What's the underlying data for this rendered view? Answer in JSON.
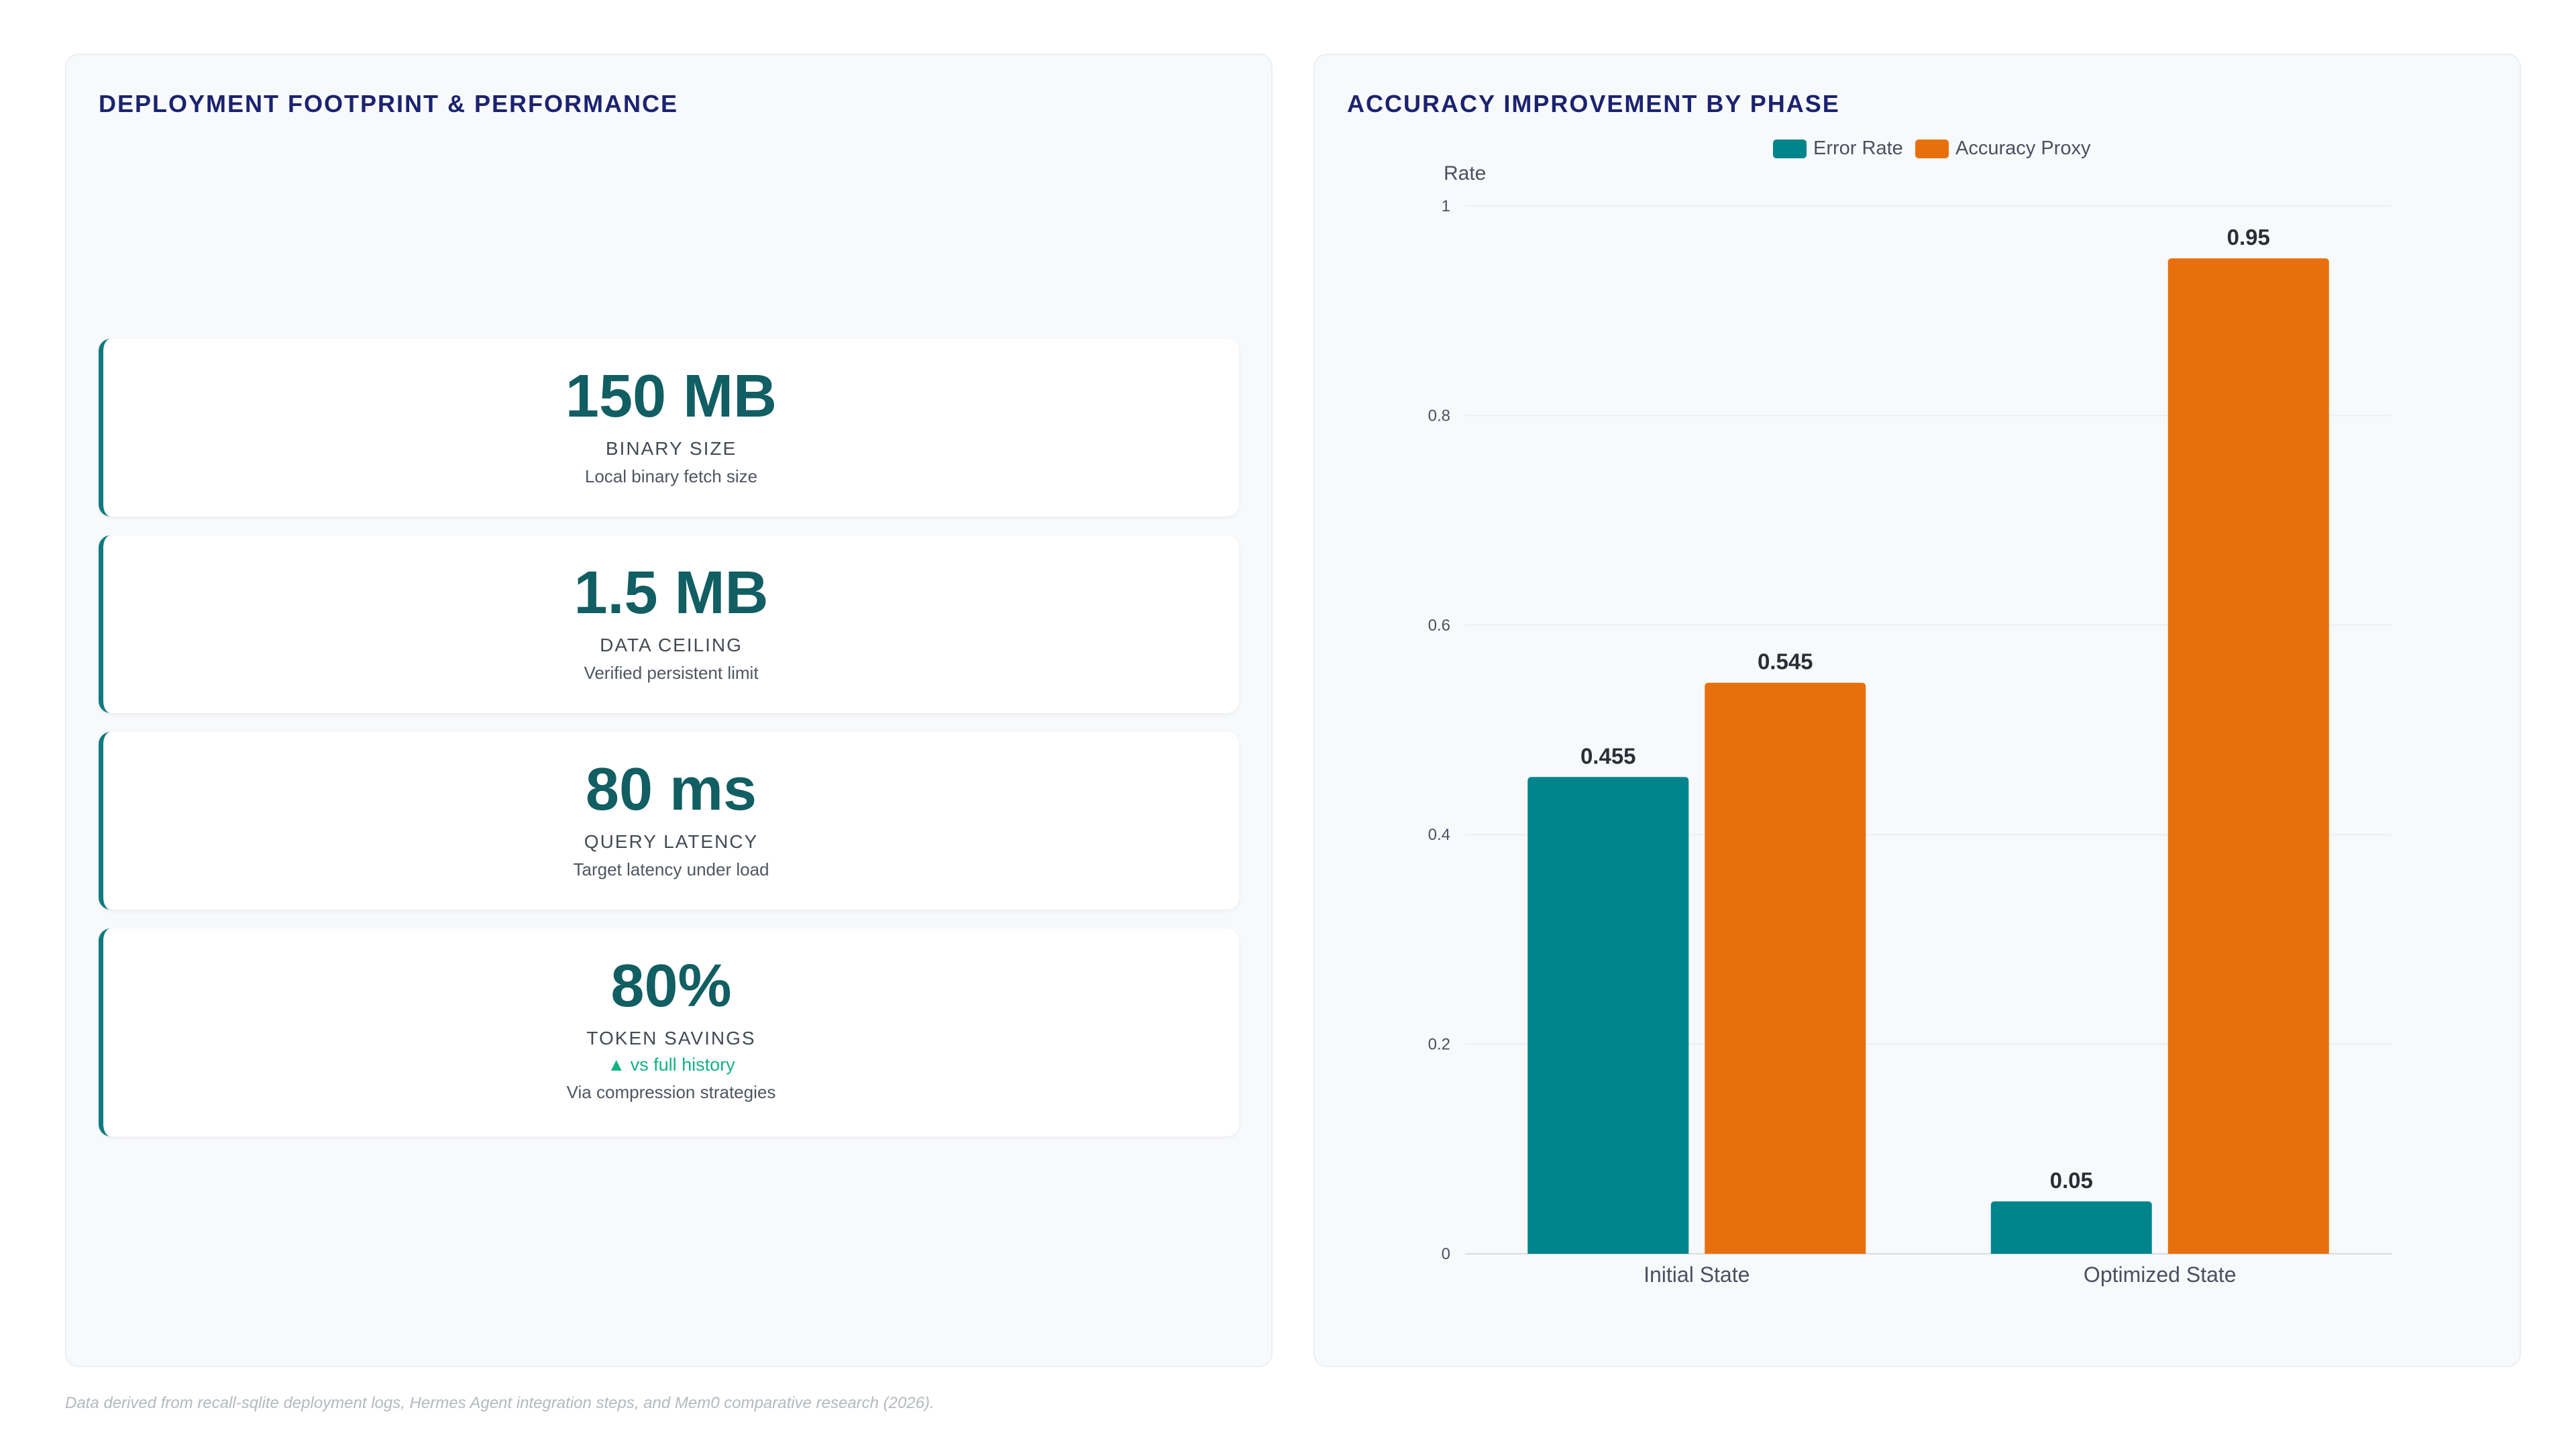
{
  "left_panel": {
    "title": "DEPLOYMENT FOOTPRINT & PERFORMANCE",
    "kpis": [
      {
        "value": "150 MB",
        "label": "BINARY SIZE",
        "sub": "Local binary fetch size"
      },
      {
        "value": "1.5 MB",
        "label": "DATA CEILING",
        "sub": "Verified persistent limit"
      },
      {
        "value": "80 ms",
        "label": "QUERY LATENCY",
        "sub": "Target latency under load"
      },
      {
        "value": "80%",
        "label": "TOKEN SAVINGS",
        "trend": "▲ vs full history",
        "sub": "Via compression strategies"
      }
    ]
  },
  "right_panel": {
    "title": "ACCURACY IMPROVEMENT BY PHASE"
  },
  "chart_data": {
    "type": "bar",
    "title": "ACCURACY IMPROVEMENT BY PHASE",
    "categories": [
      "Initial State",
      "Optimized State"
    ],
    "series": [
      {
        "name": "Error Rate",
        "color": "#00848c",
        "values": [
          0.455,
          0.05
        ]
      },
      {
        "name": "Accuracy Proxy",
        "color": "#e8700c",
        "values": [
          0.545,
          0.95
        ]
      }
    ],
    "ylabel": "Rate",
    "xlabel": "",
    "ylim": [
      0,
      1
    ],
    "y_ticks": [
      0,
      0.2,
      0.4,
      0.6,
      0.8,
      1
    ],
    "y_tick_labels": [
      "0",
      "0.2",
      "0.4",
      "0.6",
      "0.8",
      "1"
    ],
    "value_labels": [
      [
        "0.455",
        "0.05"
      ],
      [
        "0.545",
        "0.95"
      ]
    ],
    "grid": true,
    "legend_position": "top-center"
  },
  "footnote": "Data derived from recall-sqlite deployment logs, Hermes Agent integration steps, and Mem0 comparative research (2026)."
}
